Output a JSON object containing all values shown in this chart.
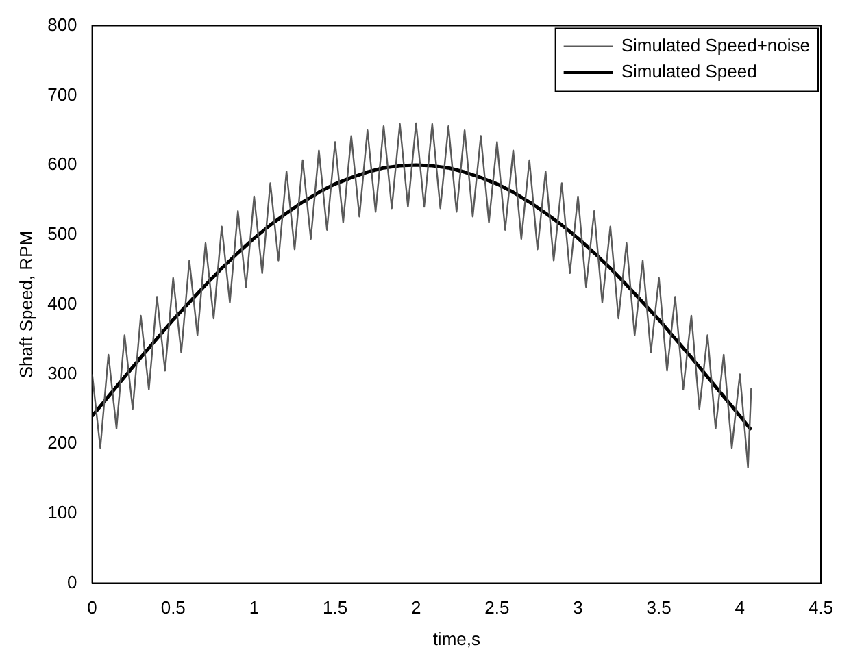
{
  "chart_data": {
    "type": "line",
    "xlabel": "time,s",
    "ylabel": "Shaft Speed, RPM",
    "xlim": [
      0,
      4.5
    ],
    "xticks": [
      0,
      0.5,
      1,
      1.5,
      2,
      2.5,
      3,
      3.5,
      4,
      4.5
    ],
    "ylim": [
      0,
      800
    ],
    "yticks": [
      0,
      100,
      200,
      300,
      400,
      500,
      600,
      700,
      800
    ],
    "grid": false,
    "legend": "top right",
    "marker": "none",
    "line_style": "solid",
    "series": [
      {
        "name": "Simulated Speed+noise",
        "color": "#5a5a5a",
        "x": [
          0,
          0.05,
          0.1,
          0.15,
          0.2,
          0.25,
          0.3,
          0.35,
          0.4,
          0.45,
          0.5,
          0.55,
          0.6,
          0.65,
          0.7,
          0.75,
          0.8,
          0.85,
          0.9,
          0.95,
          1.0,
          1.05,
          1.1,
          1.15,
          1.2,
          1.25,
          1.3,
          1.35,
          1.4,
          1.45,
          1.5,
          1.55,
          1.6,
          1.65,
          1.7,
          1.75,
          1.8,
          1.85,
          1.9,
          1.95,
          2.0,
          2.05,
          2.1,
          2.15,
          2.2,
          2.25,
          2.3,
          2.35,
          2.4,
          2.45,
          2.5,
          2.55,
          2.6,
          2.65,
          2.7,
          2.75,
          2.8,
          2.85,
          2.9,
          2.95,
          3.0,
          3.05,
          3.1,
          3.15,
          3.2,
          3.25,
          3.3,
          3.35,
          3.4,
          3.45,
          3.5,
          3.55,
          3.6,
          3.65,
          3.7,
          3.75,
          3.8,
          3.85,
          3.9,
          3.95,
          4.0,
          4.05,
          4.07
        ],
        "values": [
          300,
          194,
          328,
          222,
          356,
          250,
          384,
          278,
          411,
          305,
          438,
          331,
          463,
          356,
          488,
          380,
          512,
          403,
          534,
          425,
          555,
          445,
          574,
          463,
          591,
          479,
          607,
          494,
          621,
          507,
          633,
          518,
          642,
          526,
          650,
          533,
          656,
          538,
          659,
          540,
          660,
          540,
          659,
          538,
          656,
          533,
          650,
          526,
          642,
          518,
          633,
          507,
          621,
          494,
          607,
          479,
          591,
          463,
          574,
          445,
          555,
          425,
          534,
          403,
          512,
          380,
          488,
          356,
          463,
          331,
          438,
          305,
          411,
          278,
          384,
          250,
          356,
          222,
          328,
          194,
          300,
          166,
          280
        ]
      },
      {
        "name": "Simulated Speed",
        "color": "#000000",
        "x": [
          0,
          0.1,
          0.2,
          0.3,
          0.4,
          0.5,
          0.6,
          0.7,
          0.8,
          0.9,
          1.0,
          1.1,
          1.2,
          1.3,
          1.4,
          1.5,
          1.6,
          1.7,
          1.8,
          1.9,
          2.0,
          2.1,
          2.2,
          2.3,
          2.4,
          2.5,
          2.6,
          2.7,
          2.8,
          2.9,
          3.0,
          3.1,
          3.2,
          3.3,
          3.4,
          3.5,
          3.6,
          3.7,
          3.8,
          3.9,
          4.0,
          4.07
        ],
        "values": [
          240,
          268,
          296,
          324,
          351,
          378,
          403,
          428,
          452,
          474,
          495,
          514,
          531,
          547,
          561,
          573,
          582,
          590,
          596,
          599,
          600,
          599,
          596,
          590,
          582,
          573,
          561,
          547,
          531,
          514,
          495,
          474,
          452,
          428,
          403,
          378,
          351,
          324,
          296,
          268,
          240,
          220
        ]
      }
    ]
  }
}
